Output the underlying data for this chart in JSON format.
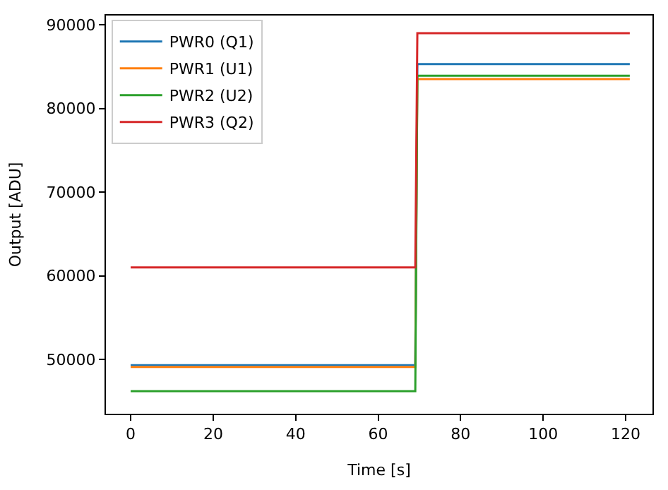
{
  "chart_data": {
    "type": "line",
    "xlabel": "Time [s]",
    "ylabel": "Output [ADU]",
    "x": [
      0,
      69,
      69.5,
      121
    ],
    "series": [
      {
        "name": "PWR0 (Q1)",
        "color": "#1f77b4",
        "values": [
          49300,
          49300,
          85300,
          85300
        ]
      },
      {
        "name": "PWR1 (U1)",
        "color": "#ff7f0e",
        "values": [
          49100,
          49100,
          83500,
          83500
        ]
      },
      {
        "name": "PWR2 (U2)",
        "color": "#2ca02c",
        "values": [
          46200,
          46200,
          83900,
          83900
        ]
      },
      {
        "name": "PWR3 (Q2)",
        "color": "#d62728",
        "values": [
          61000,
          61000,
          89000,
          89000
        ]
      }
    ],
    "xlim": [
      -6,
      126.5
    ],
    "xticks": [
      0,
      20,
      40,
      60,
      80,
      100,
      120
    ],
    "ylim": [
      43500,
      91100
    ],
    "yticks": [
      50000,
      60000,
      70000,
      80000,
      90000
    ],
    "legend": "top left",
    "marker": "none",
    "line_style": "solid"
  }
}
